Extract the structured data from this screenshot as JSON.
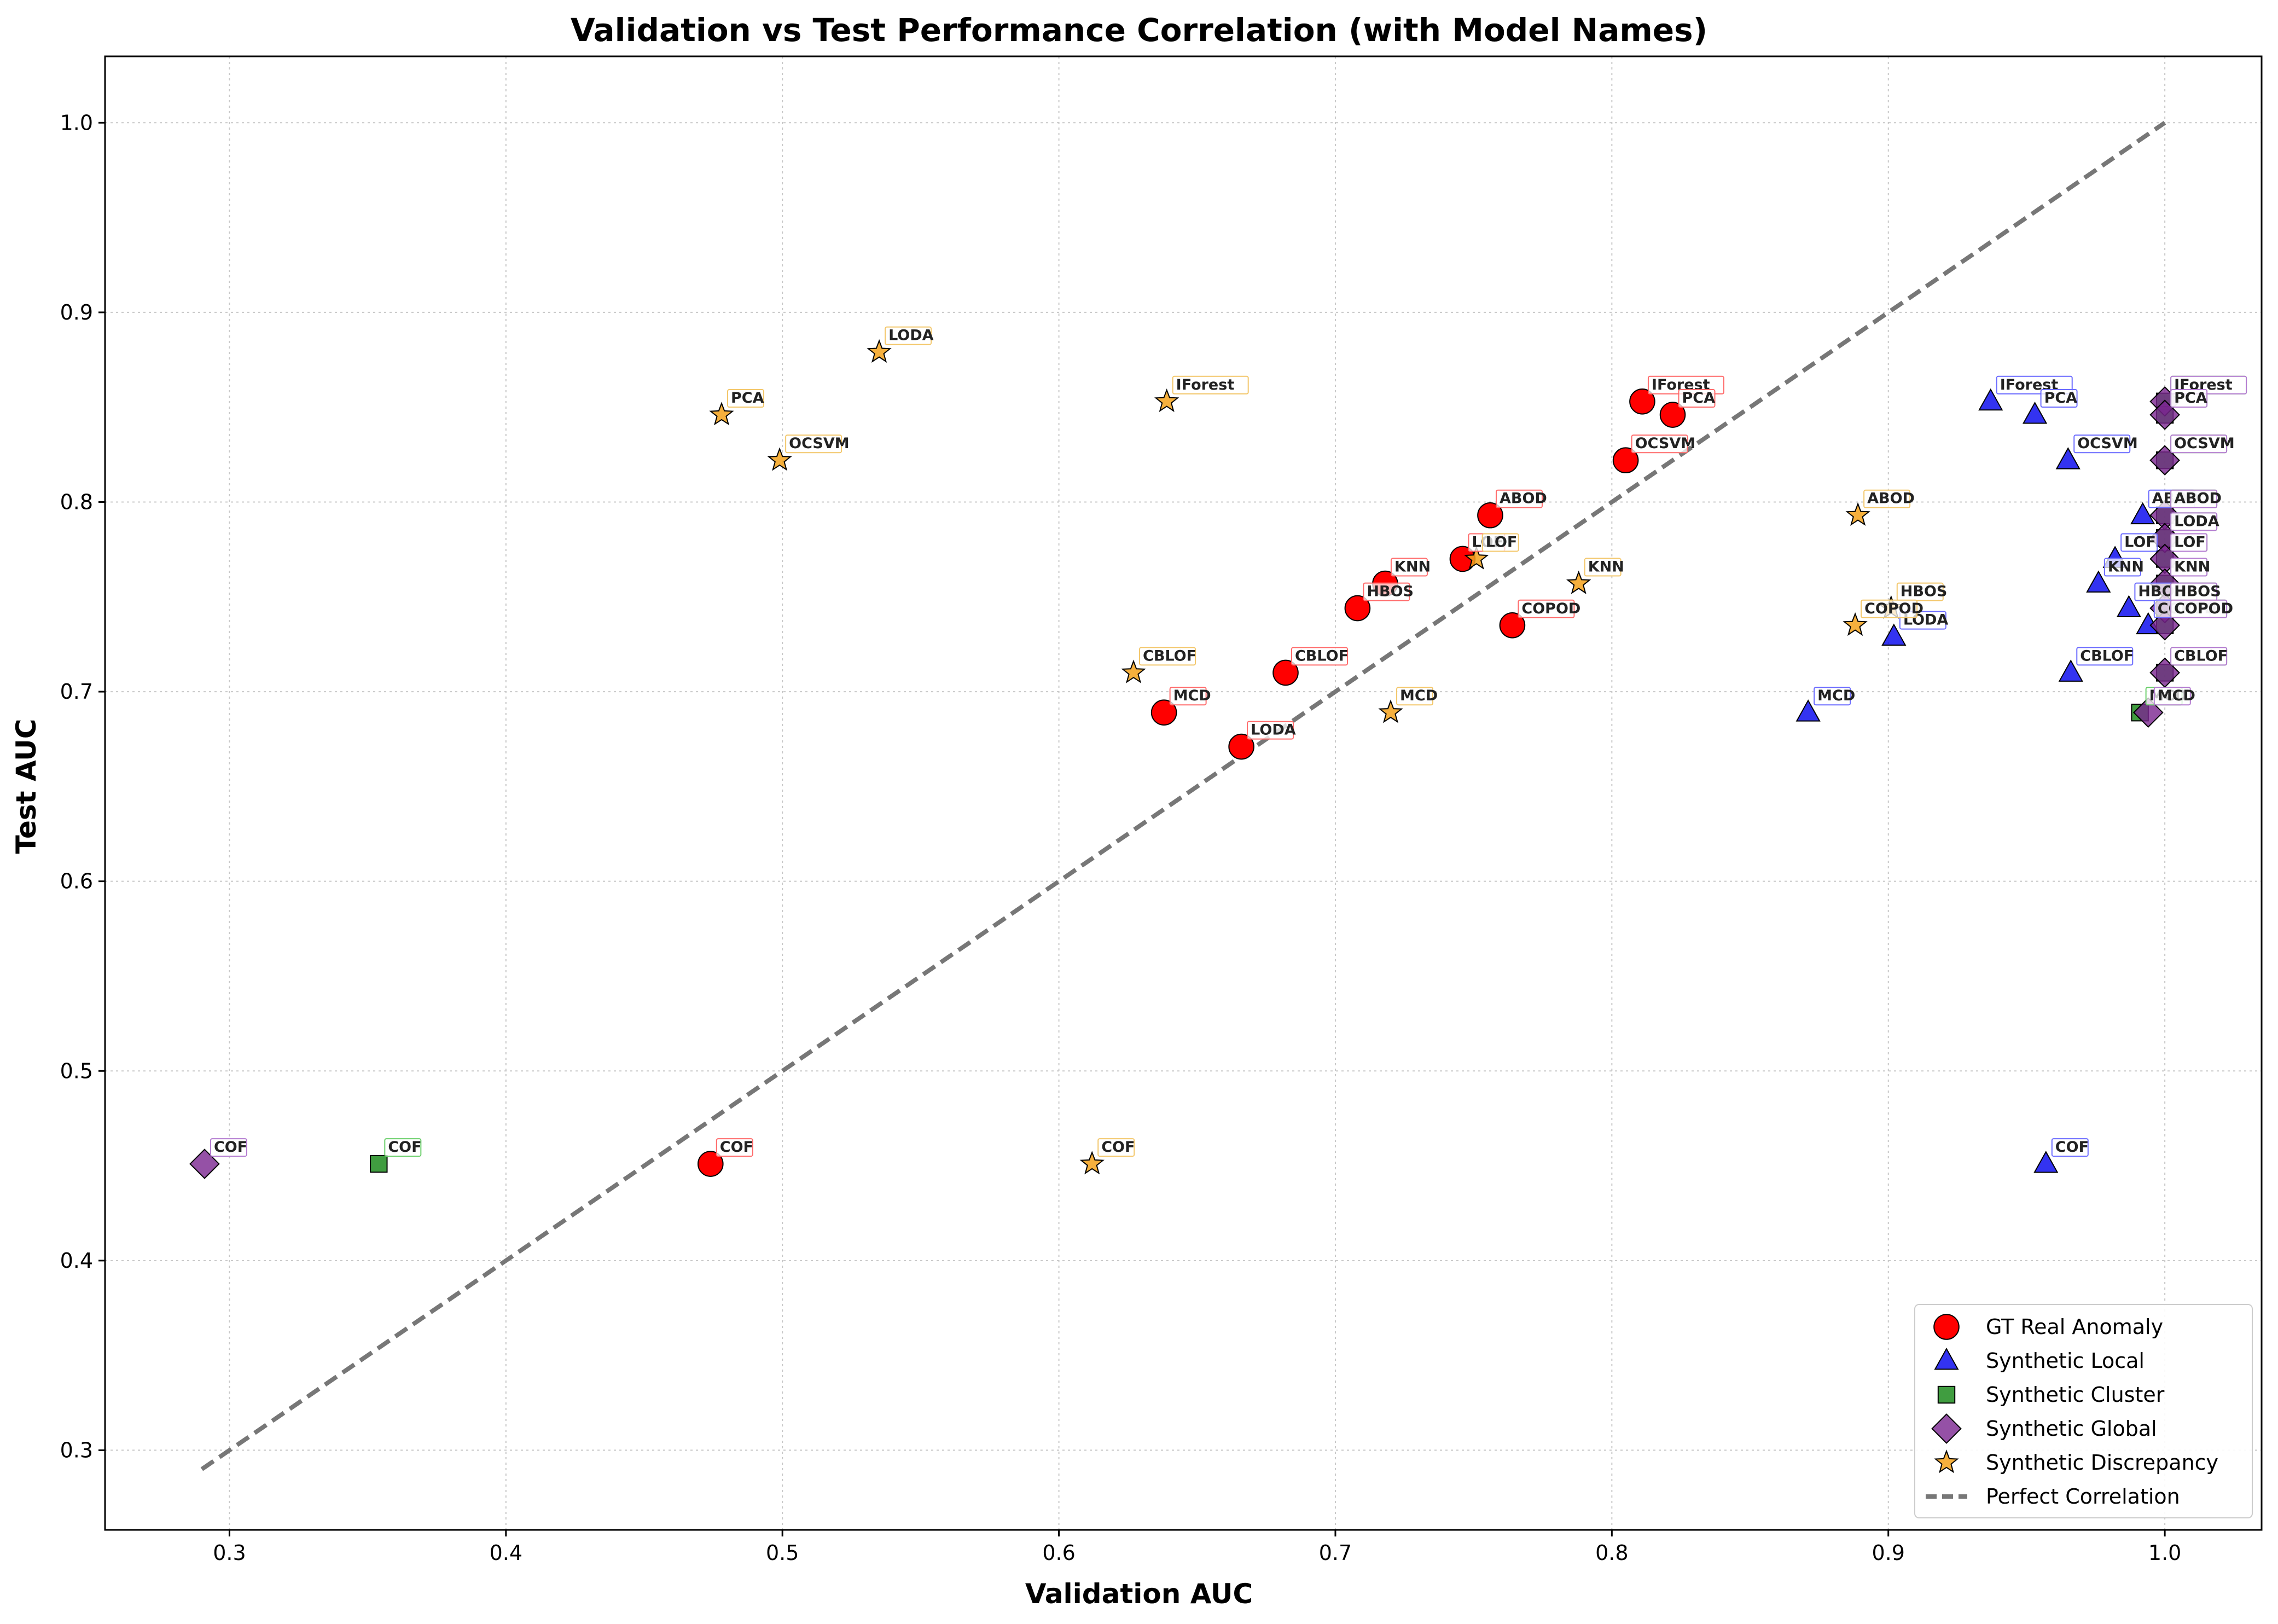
{
  "chart_data": {
    "type": "scatter",
    "title": "Validation vs Test Performance Correlation (with Model Names)",
    "xlabel": "Validation AUC",
    "ylabel": "Test AUC",
    "xlim": [
      0.255,
      1.035
    ],
    "ylim": [
      0.258,
      1.035
    ],
    "xticks": [
      0.3,
      0.4,
      0.5,
      0.6,
      0.7,
      0.8,
      0.9,
      1.0
    ],
    "yticks": [
      0.3,
      0.4,
      0.5,
      0.6,
      0.7,
      0.8,
      0.9,
      1.0
    ],
    "grid": true,
    "legend_position": "lower-right",
    "reference_line": {
      "name": "Perfect Correlation",
      "x": [
        0.29,
        1.0
      ],
      "y": [
        0.29,
        1.0
      ],
      "color": "#777777",
      "style": "dashed"
    },
    "series": [
      {
        "name": "GT Real Anomaly",
        "marker": "circle",
        "color": "#ff0000",
        "label_border": "#ff6b6b",
        "points": [
          {
            "model": "IForest",
            "x": 0.811,
            "y": 0.853
          },
          {
            "model": "PCA",
            "x": 0.822,
            "y": 0.846
          },
          {
            "model": "OCSVM",
            "x": 0.805,
            "y": 0.822
          },
          {
            "model": "ABOD",
            "x": 0.756,
            "y": 0.793
          },
          {
            "model": "LOF",
            "x": 0.746,
            "y": 0.77
          },
          {
            "model": "KNN",
            "x": 0.718,
            "y": 0.757
          },
          {
            "model": "HBOS",
            "x": 0.708,
            "y": 0.744
          },
          {
            "model": "COPOD",
            "x": 0.764,
            "y": 0.735
          },
          {
            "model": "CBLOF",
            "x": 0.682,
            "y": 0.71
          },
          {
            "model": "MCD",
            "x": 0.638,
            "y": 0.689
          },
          {
            "model": "LODA",
            "x": 0.666,
            "y": 0.671
          },
          {
            "model": "COF",
            "x": 0.474,
            "y": 0.451
          }
        ]
      },
      {
        "name": "Synthetic Local",
        "marker": "triangle",
        "color": "#0000ee",
        "label_border": "#6b6bff",
        "points": [
          {
            "model": "IForest",
            "x": 0.937,
            "y": 0.853
          },
          {
            "model": "PCA",
            "x": 0.953,
            "y": 0.846
          },
          {
            "model": "OCSVM",
            "x": 0.965,
            "y": 0.822
          },
          {
            "model": "ABOD",
            "x": 0.992,
            "y": 0.793
          },
          {
            "model": "LOF",
            "x": 0.982,
            "y": 0.77
          },
          {
            "model": "KNN",
            "x": 0.976,
            "y": 0.757
          },
          {
            "model": "HBOS",
            "x": 0.987,
            "y": 0.744
          },
          {
            "model": "COPOD",
            "x": 0.994,
            "y": 0.735
          },
          {
            "model": "LODA",
            "x": 0.902,
            "y": 0.729
          },
          {
            "model": "CBLOF",
            "x": 0.966,
            "y": 0.71
          },
          {
            "model": "MCD",
            "x": 0.871,
            "y": 0.689
          },
          {
            "model": "COF",
            "x": 0.957,
            "y": 0.451
          }
        ]
      },
      {
        "name": "Synthetic Cluster",
        "marker": "square",
        "color": "#1e8c1e",
        "label_border": "#6bcf6b",
        "points": [
          {
            "model": "IForest",
            "x": 1.0,
            "y": 0.853
          },
          {
            "model": "PCA",
            "x": 1.0,
            "y": 0.846
          },
          {
            "model": "OCSVM",
            "x": 1.0,
            "y": 0.822
          },
          {
            "model": "ABOD",
            "x": 1.0,
            "y": 0.793
          },
          {
            "model": "LODA",
            "x": 1.0,
            "y": 0.781
          },
          {
            "model": "LOF",
            "x": 1.0,
            "y": 0.77
          },
          {
            "model": "KNN",
            "x": 1.0,
            "y": 0.757
          },
          {
            "model": "HBOS",
            "x": 1.0,
            "y": 0.744
          },
          {
            "model": "COPOD",
            "x": 1.0,
            "y": 0.735
          },
          {
            "model": "CBLOF",
            "x": 1.0,
            "y": 0.71
          },
          {
            "model": "MCD",
            "x": 0.991,
            "y": 0.689
          },
          {
            "model": "COF",
            "x": 0.354,
            "y": 0.451
          }
        ]
      },
      {
        "name": "Synthetic Global",
        "marker": "diamond",
        "color": "#7b2690",
        "label_border": "#b37bd0",
        "points": [
          {
            "model": "IForest",
            "x": 1.0,
            "y": 0.853
          },
          {
            "model": "PCA",
            "x": 1.0,
            "y": 0.846
          },
          {
            "model": "OCSVM",
            "x": 1.0,
            "y": 0.822
          },
          {
            "model": "ABOD",
            "x": 1.0,
            "y": 0.793
          },
          {
            "model": "LODA",
            "x": 1.0,
            "y": 0.781
          },
          {
            "model": "LOF",
            "x": 1.0,
            "y": 0.77
          },
          {
            "model": "KNN",
            "x": 1.0,
            "y": 0.757
          },
          {
            "model": "HBOS",
            "x": 1.0,
            "y": 0.744
          },
          {
            "model": "COPOD",
            "x": 1.0,
            "y": 0.735
          },
          {
            "model": "CBLOF",
            "x": 1.0,
            "y": 0.71
          },
          {
            "model": "MCD",
            "x": 0.994,
            "y": 0.689
          },
          {
            "model": "COF",
            "x": 0.291,
            "y": 0.451
          }
        ]
      },
      {
        "name": "Synthetic Discrepancy",
        "marker": "star",
        "color": "#f5a21b",
        "label_border": "#f3c76b",
        "points": [
          {
            "model": "LODA",
            "x": 0.535,
            "y": 0.879
          },
          {
            "model": "IForest",
            "x": 0.639,
            "y": 0.853
          },
          {
            "model": "PCA",
            "x": 0.478,
            "y": 0.846
          },
          {
            "model": "OCSVM",
            "x": 0.499,
            "y": 0.822
          },
          {
            "model": "ABOD",
            "x": 0.889,
            "y": 0.793
          },
          {
            "model": "LOF",
            "x": 0.751,
            "y": 0.77
          },
          {
            "model": "KNN",
            "x": 0.788,
            "y": 0.757
          },
          {
            "model": "HBOS",
            "x": 0.901,
            "y": 0.744
          },
          {
            "model": "COPOD",
            "x": 0.888,
            "y": 0.735
          },
          {
            "model": "CBLOF",
            "x": 0.627,
            "y": 0.71
          },
          {
            "model": "MCD",
            "x": 0.72,
            "y": 0.689
          },
          {
            "model": "COF",
            "x": 0.612,
            "y": 0.451
          }
        ]
      }
    ]
  }
}
